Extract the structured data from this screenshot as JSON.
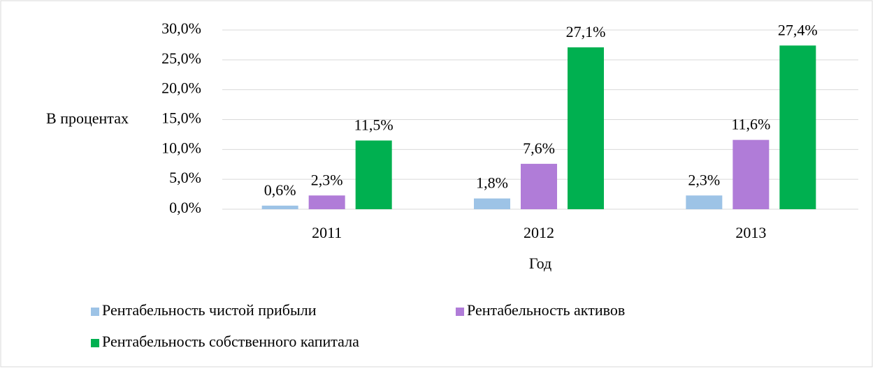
{
  "chart_data": {
    "type": "bar",
    "categories": [
      "2011",
      "2012",
      "2013"
    ],
    "series": [
      {
        "name": "Рентабельность чистой прибыли",
        "color": "#9dc3e6",
        "values": [
          0.6,
          1.8,
          2.3
        ],
        "value_labels": [
          "0,6%",
          "1,8%",
          "2,3%"
        ]
      },
      {
        "name": "Рентабельность активов",
        "color": "#b07cd8",
        "values": [
          2.3,
          7.6,
          11.6
        ],
        "value_labels": [
          "2,3%",
          "7,6%",
          "11,6%"
        ]
      },
      {
        "name": "Рентабельность собственного капитала",
        "color": "#00b050",
        "values": [
          11.5,
          27.1,
          27.4
        ],
        "value_labels": [
          "11,5%",
          "27,1%",
          "27,4%"
        ]
      }
    ],
    "ylabel": "В процентах",
    "xlabel": "Год",
    "ylim": [
      0,
      30
    ],
    "yticks": [
      {
        "value": 0,
        "label": "0,0%"
      },
      {
        "value": 5,
        "label": "5,0%"
      },
      {
        "value": 10,
        "label": "10,0%"
      },
      {
        "value": 15,
        "label": "15,0%"
      },
      {
        "value": 20,
        "label": "20,0%"
      },
      {
        "value": 25,
        "label": "25,0%"
      },
      {
        "value": 30,
        "label": "30,0%"
      }
    ],
    "grid": true,
    "legend": "bottom"
  }
}
